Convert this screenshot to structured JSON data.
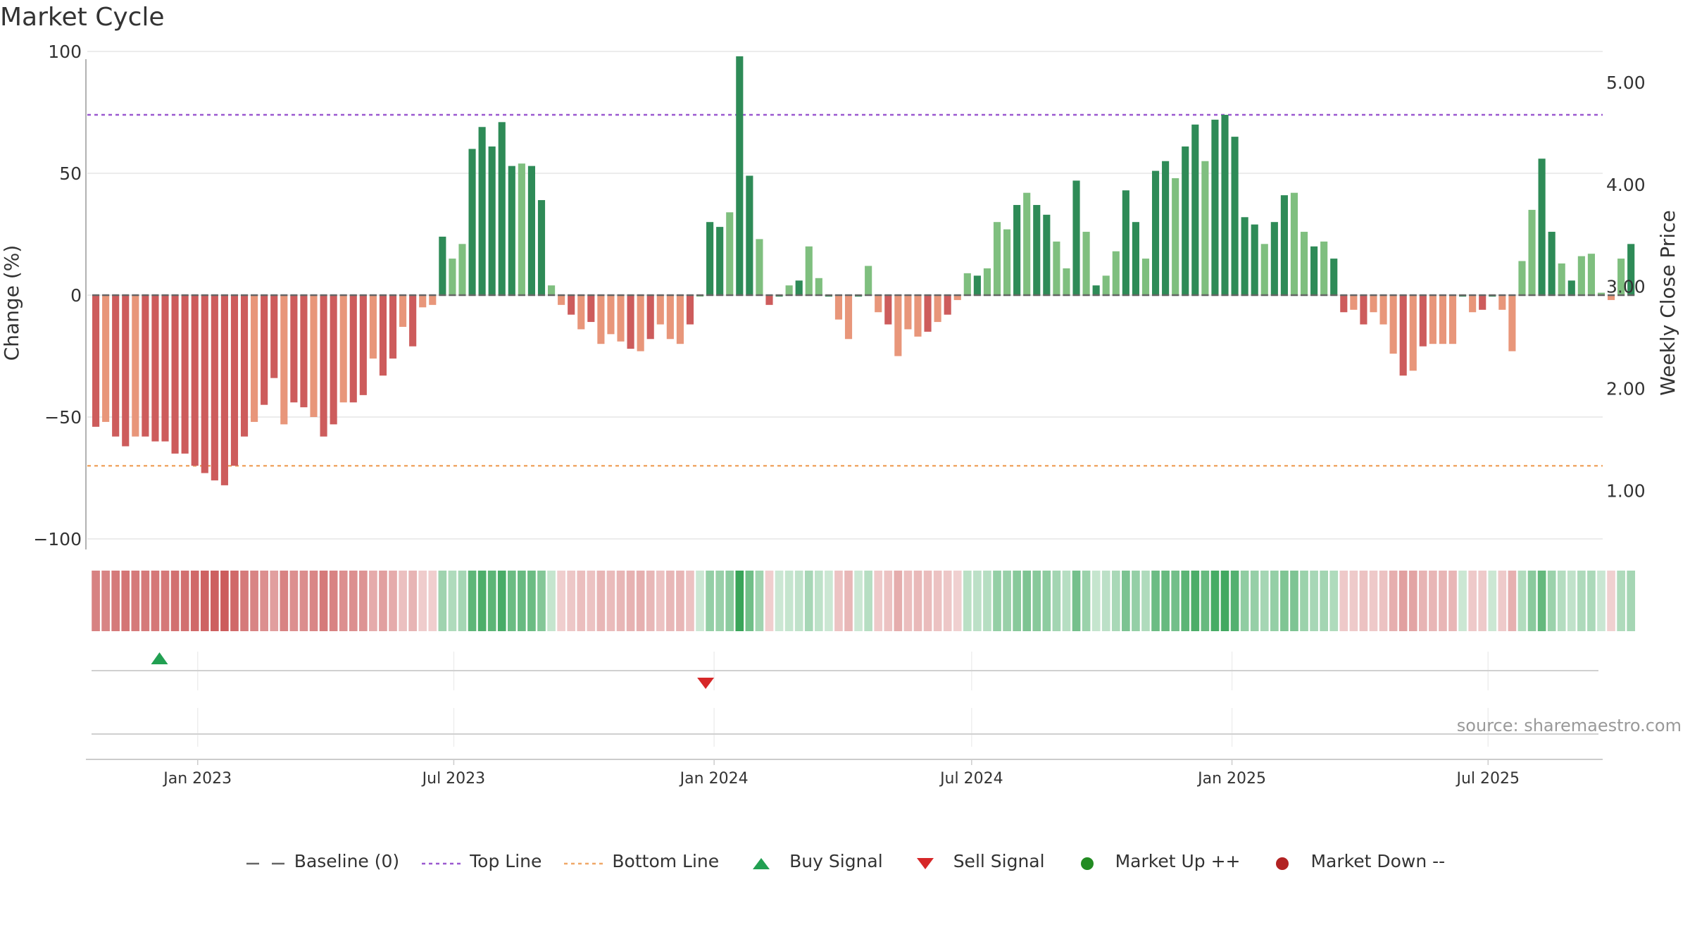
{
  "title": "Market Cycle",
  "source": "source: sharemaestro.com",
  "colors": {
    "strong_up": "#2e8b57",
    "up": "#7fbf7f",
    "down": "#e8967a",
    "strong_down": "#cd5c5c",
    "top_line": "#9b59d0",
    "bottom_line": "#f0a868",
    "baseline": "#666666",
    "buy": "#22a052",
    "sell": "#d62728",
    "market_up": "#228b22",
    "market_down": "#b22222"
  },
  "legend": [
    {
      "key": "baseline",
      "label": "Baseline (0)",
      "symbol": "dash"
    },
    {
      "key": "top",
      "label": "Top Line",
      "symbol": "dot-purple"
    },
    {
      "key": "bottom",
      "label": "Bottom Line",
      "symbol": "dot-orange"
    },
    {
      "key": "buy",
      "label": "Buy Signal",
      "symbol": "tri-up"
    },
    {
      "key": "sell",
      "label": "Sell Signal",
      "symbol": "tri-down"
    },
    {
      "key": "mup",
      "label": "Market Up ++",
      "symbol": "circle-green"
    },
    {
      "key": "mdown",
      "label": "Market Down --",
      "symbol": "circle-red"
    }
  ],
  "chart_data": {
    "type": "bar",
    "ylabel": "Change (%)",
    "y2label": "Weekly Close Price",
    "ylim": [
      -100,
      100
    ],
    "yticks": [
      100,
      50,
      0,
      -50,
      -100
    ],
    "ytick_labels": [
      "100",
      "50",
      "0",
      "−50",
      "−100"
    ],
    "y2ticks": [
      5.0,
      4.0,
      3.0,
      2.0,
      1.0
    ],
    "y2tick_labels": [
      "5.00",
      "4.00",
      "3.00",
      "2.00",
      "1.00"
    ],
    "y2lim": [
      0.45,
      5.2
    ],
    "top_line": 74,
    "bottom_line": -70,
    "x_start": "2022-10-15",
    "x_end": "2025-09-20",
    "week_start": "2022-10-21",
    "xticks": [
      "Jan 2023",
      "Jul 2023",
      "Jan 2024",
      "Jul 2024",
      "Jan 2025",
      "Jul 2025"
    ],
    "xtick_dates": [
      "2023-01-01",
      "2023-07-01",
      "2024-01-01",
      "2024-07-01",
      "2025-01-01",
      "2025-07-01"
    ],
    "grid": true,
    "legend_position": "bottom",
    "values": [
      -54,
      -52,
      -58,
      -62,
      -58,
      -58,
      -60,
      -60,
      -65,
      -65,
      -70,
      -73,
      -76,
      -78,
      -70,
      -58,
      -52,
      -45,
      -34,
      -53,
      -44,
      -46,
      -50,
      -58,
      -53,
      -44,
      -44,
      -41,
      -26,
      -33,
      -26,
      -13,
      -21,
      -5,
      -4,
      24,
      15,
      21,
      60,
      69,
      61,
      71,
      53,
      54,
      53,
      39,
      4,
      -4,
      -8,
      -14,
      -11,
      -20,
      -16,
      -19,
      -22,
      -23,
      -18,
      -12,
      -18,
      -20,
      -12,
      0,
      30,
      28,
      34,
      98,
      49,
      23,
      -4,
      0,
      4,
      6,
      20,
      7,
      0,
      -10,
      -18,
      0,
      12,
      -7,
      -12,
      -25,
      -14,
      -17,
      -15,
      -11,
      -8,
      -2,
      9,
      8,
      11,
      30,
      27,
      37,
      42,
      37,
      33,
      22,
      11,
      47,
      26,
      4,
      8,
      18,
      43,
      30,
      15,
      51,
      55,
      48,
      61,
      70,
      55,
      72,
      74,
      65,
      32,
      29,
      21,
      30,
      41,
      42,
      26,
      20,
      22,
      15,
      -7,
      -6,
      -12,
      -7,
      -12,
      -24,
      -33,
      -31,
      -21,
      -20,
      -20,
      -20,
      0,
      -7,
      -6,
      0,
      -6,
      -23,
      14,
      35,
      56,
      26,
      13,
      6,
      16,
      17,
      1,
      -2,
      15,
      21
    ],
    "signals": [
      {
        "type": "buy",
        "date": "2022-12-05"
      },
      {
        "type": "sell",
        "date": "2023-12-26"
      }
    ]
  }
}
